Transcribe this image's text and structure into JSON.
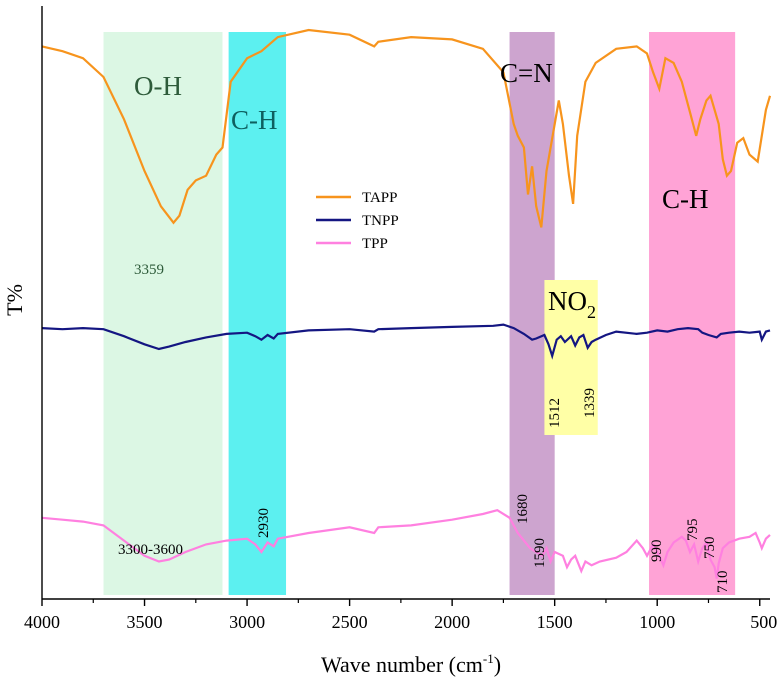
{
  "chart_data": {
    "type": "line",
    "title": "",
    "xlabel": "Wave number (cm",
    "xlabel_sup": "-1",
    "xlabel_close": ")",
    "ylabel": "T%",
    "xlim": [
      4000,
      450
    ],
    "x_reversed": true,
    "x_ticks": [
      {
        "value": 4000,
        "label": "4000"
      },
      {
        "value": 3500,
        "label": "3500"
      },
      {
        "value": 3000,
        "label": "3000"
      },
      {
        "value": 2500,
        "label": "2500"
      },
      {
        "value": 2000,
        "label": "2000"
      },
      {
        "value": 1500,
        "label": "1500"
      },
      {
        "value": 1000,
        "label": "1000"
      },
      {
        "value": 500,
        "label": "500"
      }
    ],
    "y_units": "arbitrary transmittance (stacked, offset)",
    "legend_position": "center",
    "series": [
      {
        "name": "TAPP",
        "color": "#f7941d",
        "points": [
          [
            4000,
            0.93
          ],
          [
            3900,
            0.91
          ],
          [
            3800,
            0.88
          ],
          [
            3700,
            0.8
          ],
          [
            3600,
            0.62
          ],
          [
            3500,
            0.4
          ],
          [
            3420,
            0.25
          ],
          [
            3359,
            0.18
          ],
          [
            3330,
            0.21
          ],
          [
            3290,
            0.32
          ],
          [
            3250,
            0.36
          ],
          [
            3200,
            0.38
          ],
          [
            3150,
            0.47
          ],
          [
            3120,
            0.5
          ],
          [
            3080,
            0.78
          ],
          [
            3000,
            0.88
          ],
          [
            2930,
            0.91
          ],
          [
            2850,
            0.97
          ],
          [
            2700,
            1.0
          ],
          [
            2500,
            0.98
          ],
          [
            2380,
            0.93
          ],
          [
            2360,
            0.95
          ],
          [
            2200,
            0.97
          ],
          [
            2000,
            0.96
          ],
          [
            1850,
            0.92
          ],
          [
            1750,
            0.82
          ],
          [
            1700,
            0.6
          ],
          [
            1680,
            0.55
          ],
          [
            1650,
            0.5
          ],
          [
            1630,
            0.3
          ],
          [
            1610,
            0.42
          ],
          [
            1590,
            0.25
          ],
          [
            1565,
            0.16
          ],
          [
            1540,
            0.4
          ],
          [
            1500,
            0.6
          ],
          [
            1480,
            0.7
          ],
          [
            1460,
            0.6
          ],
          [
            1430,
            0.38
          ],
          [
            1410,
            0.26
          ],
          [
            1390,
            0.55
          ],
          [
            1350,
            0.78
          ],
          [
            1300,
            0.86
          ],
          [
            1200,
            0.92
          ],
          [
            1100,
            0.93
          ],
          [
            1050,
            0.9
          ],
          [
            1020,
            0.82
          ],
          [
            990,
            0.75
          ],
          [
            960,
            0.88
          ],
          [
            920,
            0.86
          ],
          [
            880,
            0.78
          ],
          [
            840,
            0.65
          ],
          [
            810,
            0.55
          ],
          [
            790,
            0.62
          ],
          [
            760,
            0.7
          ],
          [
            740,
            0.72
          ],
          [
            700,
            0.6
          ],
          [
            680,
            0.45
          ],
          [
            660,
            0.38
          ],
          [
            640,
            0.4
          ],
          [
            610,
            0.52
          ],
          [
            580,
            0.54
          ],
          [
            550,
            0.47
          ],
          [
            510,
            0.44
          ],
          [
            490,
            0.55
          ],
          [
            470,
            0.66
          ],
          [
            450,
            0.72
          ]
        ]
      },
      {
        "name": "TNPP",
        "color": "#141682",
        "points": [
          [
            4000,
            0.62
          ],
          [
            3900,
            0.61
          ],
          [
            3800,
            0.62
          ],
          [
            3700,
            0.61
          ],
          [
            3600,
            0.55
          ],
          [
            3500,
            0.48
          ],
          [
            3430,
            0.44
          ],
          [
            3380,
            0.46
          ],
          [
            3300,
            0.5
          ],
          [
            3200,
            0.54
          ],
          [
            3100,
            0.57
          ],
          [
            3000,
            0.58
          ],
          [
            2960,
            0.55
          ],
          [
            2930,
            0.52
          ],
          [
            2900,
            0.56
          ],
          [
            2870,
            0.53
          ],
          [
            2850,
            0.57
          ],
          [
            2700,
            0.6
          ],
          [
            2500,
            0.61
          ],
          [
            2380,
            0.59
          ],
          [
            2360,
            0.61
          ],
          [
            2200,
            0.62
          ],
          [
            2000,
            0.63
          ],
          [
            1800,
            0.64
          ],
          [
            1750,
            0.65
          ],
          [
            1700,
            0.62
          ],
          [
            1650,
            0.57
          ],
          [
            1610,
            0.52
          ],
          [
            1590,
            0.53
          ],
          [
            1550,
            0.56
          ],
          [
            1530,
            0.48
          ],
          [
            1512,
            0.38
          ],
          [
            1490,
            0.52
          ],
          [
            1470,
            0.55
          ],
          [
            1450,
            0.5
          ],
          [
            1420,
            0.55
          ],
          [
            1400,
            0.47
          ],
          [
            1380,
            0.54
          ],
          [
            1360,
            0.56
          ],
          [
            1339,
            0.45
          ],
          [
            1320,
            0.5
          ],
          [
            1300,
            0.52
          ],
          [
            1250,
            0.56
          ],
          [
            1200,
            0.59
          ],
          [
            1100,
            0.57
          ],
          [
            1050,
            0.58
          ],
          [
            1000,
            0.6
          ],
          [
            950,
            0.59
          ],
          [
            900,
            0.61
          ],
          [
            850,
            0.62
          ],
          [
            800,
            0.61
          ],
          [
            780,
            0.58
          ],
          [
            750,
            0.56
          ],
          [
            710,
            0.54
          ],
          [
            690,
            0.57
          ],
          [
            650,
            0.58
          ],
          [
            600,
            0.59
          ],
          [
            550,
            0.58
          ],
          [
            500,
            0.59
          ],
          [
            490,
            0.52
          ],
          [
            470,
            0.59
          ],
          [
            450,
            0.6
          ]
        ]
      },
      {
        "name": "TPP",
        "color": "#ff80e0",
        "points": [
          [
            4000,
            0.38
          ],
          [
            3900,
            0.37
          ],
          [
            3800,
            0.36
          ],
          [
            3700,
            0.34
          ],
          [
            3600,
            0.26
          ],
          [
            3500,
            0.18
          ],
          [
            3430,
            0.15
          ],
          [
            3380,
            0.16
          ],
          [
            3300,
            0.2
          ],
          [
            3200,
            0.24
          ],
          [
            3100,
            0.26
          ],
          [
            3000,
            0.27
          ],
          [
            2960,
            0.24
          ],
          [
            2930,
            0.2
          ],
          [
            2900,
            0.25
          ],
          [
            2870,
            0.23
          ],
          [
            2850,
            0.27
          ],
          [
            2700,
            0.3
          ],
          [
            2500,
            0.33
          ],
          [
            2380,
            0.3
          ],
          [
            2360,
            0.33
          ],
          [
            2200,
            0.34
          ],
          [
            2000,
            0.37
          ],
          [
            1850,
            0.4
          ],
          [
            1780,
            0.42
          ],
          [
            1720,
            0.38
          ],
          [
            1680,
            0.3
          ],
          [
            1650,
            0.26
          ],
          [
            1620,
            0.22
          ],
          [
            1590,
            0.2
          ],
          [
            1560,
            0.18
          ],
          [
            1540,
            0.22
          ],
          [
            1520,
            0.15
          ],
          [
            1500,
            0.2
          ],
          [
            1460,
            0.18
          ],
          [
            1440,
            0.12
          ],
          [
            1420,
            0.16
          ],
          [
            1400,
            0.18
          ],
          [
            1370,
            0.1
          ],
          [
            1350,
            0.15
          ],
          [
            1320,
            0.13
          ],
          [
            1280,
            0.15
          ],
          [
            1200,
            0.17
          ],
          [
            1150,
            0.2
          ],
          [
            1100,
            0.26
          ],
          [
            1070,
            0.22
          ],
          [
            1050,
            0.18
          ],
          [
            1020,
            0.24
          ],
          [
            990,
            0.18
          ],
          [
            970,
            0.13
          ],
          [
            950,
            0.2
          ],
          [
            920,
            0.25
          ],
          [
            880,
            0.28
          ],
          [
            860,
            0.26
          ],
          [
            840,
            0.2
          ],
          [
            820,
            0.24
          ],
          [
            800,
            0.15
          ],
          [
            780,
            0.22
          ],
          [
            760,
            0.25
          ],
          [
            740,
            0.16
          ],
          [
            720,
            0.12
          ],
          [
            710,
            0.06
          ],
          [
            700,
            0.14
          ],
          [
            680,
            0.22
          ],
          [
            650,
            0.25
          ],
          [
            600,
            0.27
          ],
          [
            550,
            0.28
          ],
          [
            520,
            0.3
          ],
          [
            500,
            0.25
          ],
          [
            490,
            0.22
          ],
          [
            470,
            0.27
          ],
          [
            450,
            0.29
          ]
        ]
      }
    ],
    "bands": [
      {
        "name": "O-H",
        "from": 3700,
        "to": 3120,
        "color": "#dcf7e4"
      },
      {
        "name": "C-H",
        "from": 3090,
        "to": 2810,
        "color": "#5cf0f0"
      },
      {
        "name": "C=N",
        "from": 1720,
        "to": 1500,
        "color": "#cda4cf"
      },
      {
        "name": "NO2",
        "from": 1550,
        "to": 1290,
        "color": "#ffffa6"
      },
      {
        "name": "C-H",
        "from": 1040,
        "to": 620,
        "color": "#ffa3d6"
      }
    ],
    "annotations": [
      {
        "text": "O-H",
        "type": "band-label"
      },
      {
        "text": "C-H",
        "type": "band-label"
      },
      {
        "text": "C=N",
        "type": "band-label"
      },
      {
        "text": "NO",
        "sub": "2",
        "type": "band-label"
      },
      {
        "text": "C-H",
        "type": "band-label"
      },
      {
        "text": "3359",
        "type": "peak"
      },
      {
        "text": "3300-3600",
        "type": "peak"
      },
      {
        "text": "2930",
        "type": "peak",
        "rotated": true
      },
      {
        "text": "1680",
        "type": "peak",
        "rotated": true
      },
      {
        "text": "1590",
        "type": "peak",
        "rotated": true
      },
      {
        "text": "1512",
        "type": "peak",
        "rotated": true
      },
      {
        "text": "1339",
        "type": "peak",
        "rotated": true
      },
      {
        "text": "990",
        "type": "peak",
        "rotated": true
      },
      {
        "text": "795",
        "type": "peak",
        "rotated": true
      },
      {
        "text": "750",
        "type": "peak",
        "rotated": true
      },
      {
        "text": "710",
        "type": "peak",
        "rotated": true
      }
    ]
  }
}
